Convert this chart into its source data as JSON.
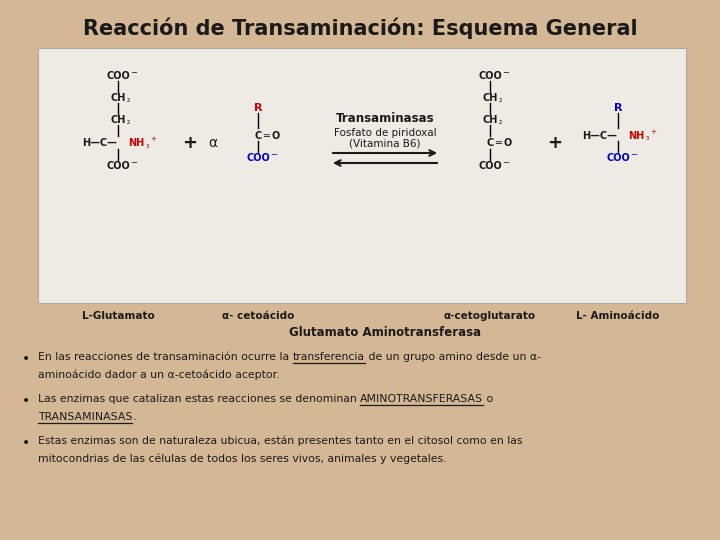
{
  "title": "Reacción de Transaminación: Esquema General",
  "background_color": "#D4B896",
  "box_color": "#EEEAE4",
  "box_border_color": "#AAAAAA",
  "title_color": "#1a1a1a",
  "enzyme_label": "Transaminasas",
  "cofactor_label": "Fosfato de piridoxal\n(Vitamina B6)",
  "labels": [
    "L-Glutamato",
    "α- cetoácido",
    "α-cetoglutarato",
    "L- Aminoácido"
  ],
  "center_label": "Glutamato Aminotransferasa",
  "bullet1_pre": "En las reacciones de transaminación ocurre la ",
  "bullet1_ul": "transferencia",
  "bullet1_post": " de un grupo amino desde un α-",
  "bullet1_line2": "aminoácido dador a un α-cetoácido aceptor.",
  "bullet2_pre": "Las enzimas que catalizan estas reacciones se denominan ",
  "bullet2_ul1": "AMINOTRANSFERASAS",
  "bullet2_mid": " o",
  "bullet2_ul2": "TRANSAMINASAS",
  "bullet2_end": ".",
  "bullet3_line1": "Estas enzimas son de naturaleza ubicua, están presentes tanto en el citosol como en las",
  "bullet3_line2": "mitocondrias de las células de todos los seres vivos, animales y vegetales.",
  "black": "#1a1a1a",
  "red": "#CC0000",
  "blue": "#0000CC",
  "fontsize_title": 15,
  "fontsize_struct": 7,
  "fontsize_label": 7.5,
  "fontsize_bullet": 7.8
}
